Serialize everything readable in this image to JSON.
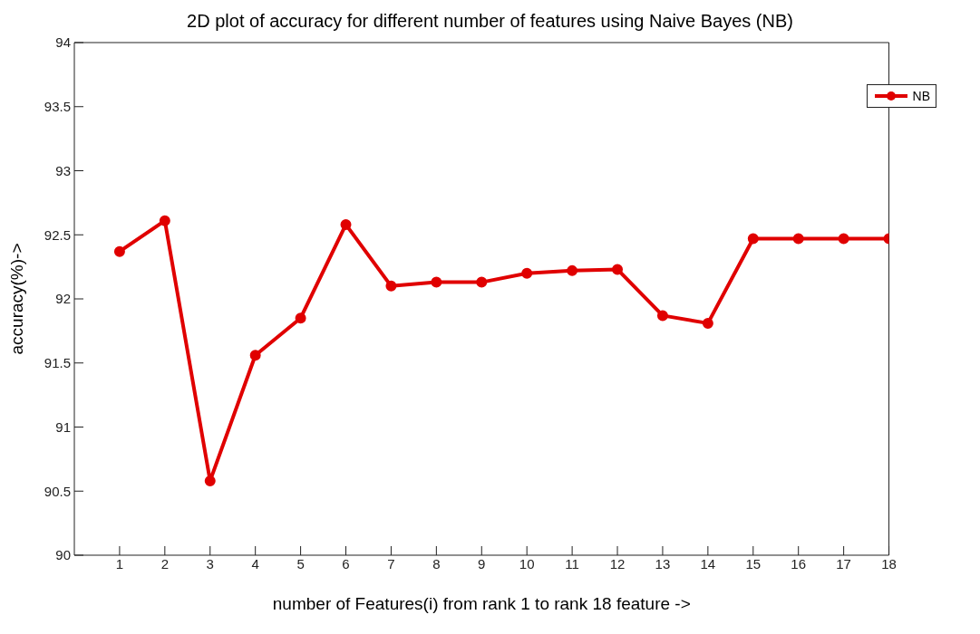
{
  "chart_data": {
    "type": "line",
    "title": "2D plot of accuracy for different number of features using Naive Bayes (NB)",
    "xlabel": "number of Features(i) from  rank 1 to rank 18 feature ->",
    "ylabel": "accuracy(%)->",
    "x": [
      1,
      2,
      3,
      4,
      5,
      6,
      7,
      8,
      9,
      10,
      11,
      12,
      13,
      14,
      15,
      16,
      17,
      18
    ],
    "series": [
      {
        "name": "NB",
        "color": "#e00000",
        "values": [
          92.37,
          92.61,
          90.58,
          91.56,
          91.85,
          92.58,
          92.1,
          92.13,
          92.13,
          92.2,
          92.22,
          92.23,
          91.87,
          91.81,
          92.47,
          92.47,
          92.47,
          92.47
        ]
      }
    ],
    "xlim": [
      0,
      18
    ],
    "xticks": [
      1,
      2,
      3,
      4,
      5,
      6,
      7,
      8,
      9,
      10,
      11,
      12,
      13,
      14,
      15,
      16,
      17,
      18
    ],
    "ylim": [
      90,
      94
    ],
    "yticks": [
      90,
      90.5,
      91,
      91.5,
      92,
      92.5,
      93,
      93.5,
      94
    ],
    "grid": false,
    "legend": "top right",
    "marker": "circle",
    "line_style": "solid"
  }
}
